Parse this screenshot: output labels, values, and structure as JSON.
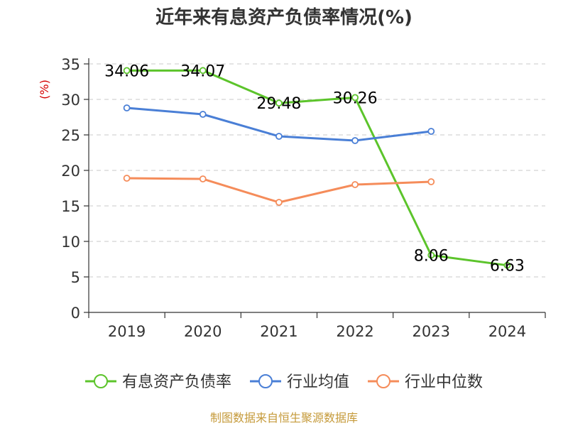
{
  "chart_data": {
    "type": "line",
    "title": "近年来有息资产负债率情况(%)",
    "ylabel": "(%)",
    "xlabel": "",
    "categories": [
      "2019",
      "2020",
      "2021",
      "2022",
      "2023",
      "2024"
    ],
    "ylim": [
      0,
      35
    ],
    "yticks": [
      0,
      5,
      10,
      15,
      20,
      25,
      30,
      35
    ],
    "grid": true,
    "legend_position": "bottom",
    "series": [
      {
        "name": "有息资产负债率",
        "color": "#5cc42b",
        "values": [
          34.06,
          34.07,
          29.48,
          30.26,
          8.06,
          6.63
        ],
        "labels": [
          "34.06",
          "34.07",
          "29.48",
          "30.26",
          "8.06",
          "6.63"
        ]
      },
      {
        "name": "行业均值",
        "color": "#4a7fd6",
        "values": [
          28.8,
          27.9,
          24.8,
          24.2,
          25.5,
          null
        ]
      },
      {
        "name": "行业中位数",
        "color": "#f58c5a",
        "values": [
          18.9,
          18.8,
          15.5,
          18.0,
          18.4,
          null
        ]
      }
    ]
  },
  "footer": {
    "source": "制图数据来自恒生聚源数据库"
  }
}
